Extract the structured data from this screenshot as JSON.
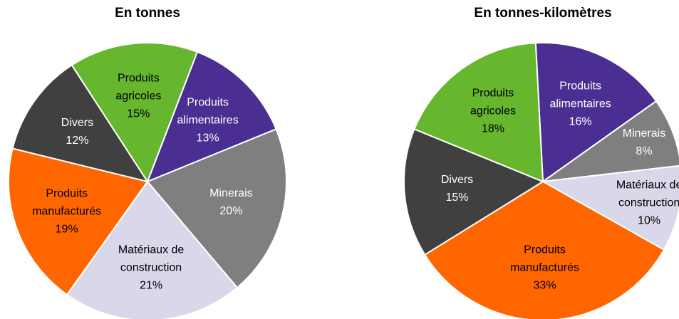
{
  "chart_data": [
    {
      "type": "pie",
      "title": "En tonnes",
      "categories": [
        "Produits alimentaires",
        "Minerais",
        "Matériaux de construction",
        "Produits manufacturés",
        "Divers",
        "Produits agricoles"
      ],
      "values": [
        13,
        20,
        21,
        19,
        12,
        15
      ],
      "value_labels": [
        "13%",
        "20%",
        "21%",
        "19%",
        "12%",
        "15%"
      ],
      "colors": [
        "#4b2e91",
        "#7f7f7f",
        "#d9d7ea",
        "#ff6600",
        "#404040",
        "#66b62e"
      ]
    },
    {
      "type": "pie",
      "title": "En tonnes-kilomètres",
      "categories": [
        "Produits alimentaires",
        "Minerais",
        "Matériaux de construction",
        "Produits manufacturés",
        "Divers",
        "Produits agricoles"
      ],
      "values": [
        16,
        8,
        10,
        33,
        15,
        18
      ],
      "value_labels": [
        "16%",
        "8%",
        "10%",
        "33%",
        "15%",
        "18%"
      ],
      "colors": [
        "#4b2e91",
        "#7f7f7f",
        "#d9d7ea",
        "#ff6600",
        "#404040",
        "#66b62e"
      ]
    }
  ]
}
